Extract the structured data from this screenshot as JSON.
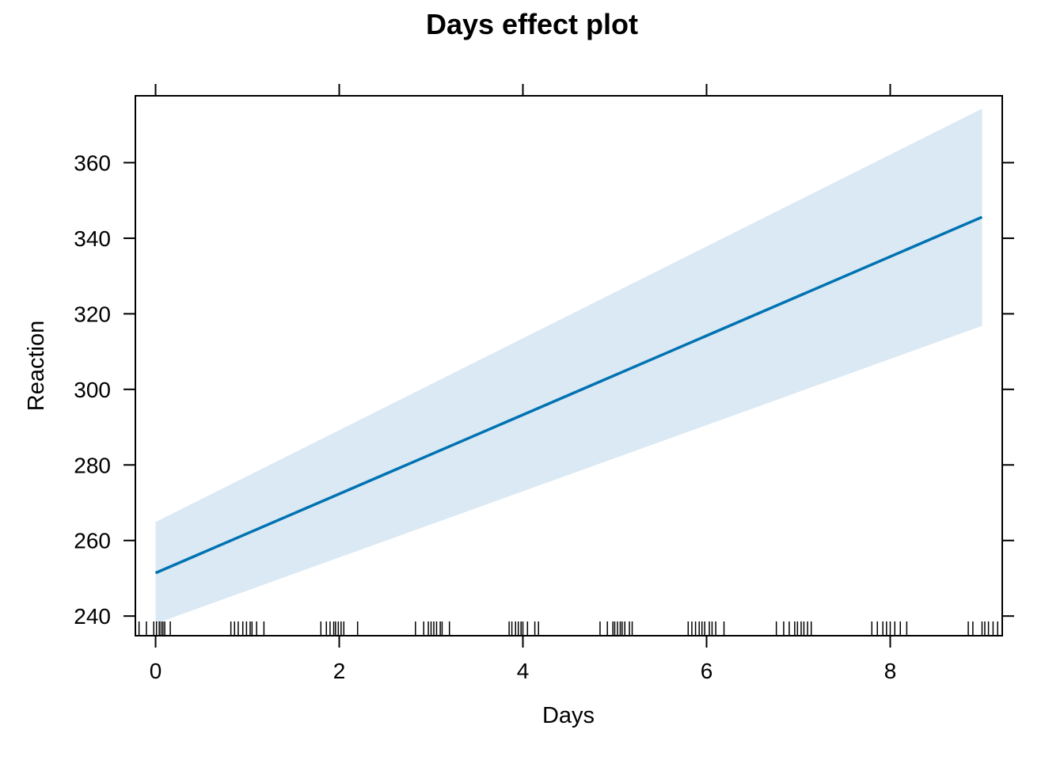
{
  "chart_data": {
    "type": "line",
    "title": "Days effect plot",
    "xlabel": "Days",
    "ylabel": "Reaction",
    "xlim": [
      -0.22,
      9.22
    ],
    "ylim": [
      234.8,
      377.7
    ],
    "x_ticks": [
      0,
      2,
      4,
      6,
      8
    ],
    "y_ticks": [
      240,
      260,
      280,
      300,
      320,
      340,
      360
    ],
    "x_tick_labels": [
      "0",
      "2",
      "4",
      "6",
      "8"
    ],
    "y_tick_labels": [
      "240",
      "260",
      "280",
      "300",
      "320",
      "340",
      "360"
    ],
    "series": [
      {
        "x": [
          0,
          9
        ],
        "fit": [
          251.4,
          345.6
        ],
        "lower": [
          238.0,
          316.8
        ],
        "upper": [
          264.9,
          374.3
        ]
      }
    ],
    "rug": [
      -0.18,
      -0.1,
      -0.02,
      0.01,
      0.04,
      0.06,
      0.08,
      0.1,
      0.16,
      0.82,
      0.86,
      0.9,
      0.95,
      0.99,
      1.03,
      1.05,
      1.1,
      1.18,
      1.8,
      1.86,
      1.9,
      1.94,
      1.96,
      1.99,
      2.02,
      2.05,
      2.2,
      2.83,
      2.92,
      2.97,
      3.0,
      3.03,
      3.06,
      3.1,
      3.12,
      3.2,
      3.85,
      3.88,
      3.92,
      3.95,
      3.98,
      4.0,
      4.05,
      4.13,
      4.17,
      4.84,
      4.92,
      4.98,
      5.0,
      5.03,
      5.06,
      5.08,
      5.11,
      5.16,
      5.19,
      5.8,
      5.84,
      5.88,
      5.92,
      5.95,
      5.98,
      6.03,
      6.06,
      6.1,
      6.19,
      6.76,
      6.84,
      6.9,
      6.96,
      6.99,
      7.03,
      7.06,
      7.1,
      7.14,
      7.8,
      7.86,
      7.92,
      7.96,
      8.0,
      8.05,
      8.11,
      8.18,
      8.85,
      8.9,
      9.0,
      9.03,
      9.07,
      9.12,
      9.17
    ],
    "colors": {
      "fit_line": "#0072B2",
      "confidence_band": "#DAE9F3",
      "frame": "#000000"
    },
    "grid": false,
    "legend": "none"
  }
}
